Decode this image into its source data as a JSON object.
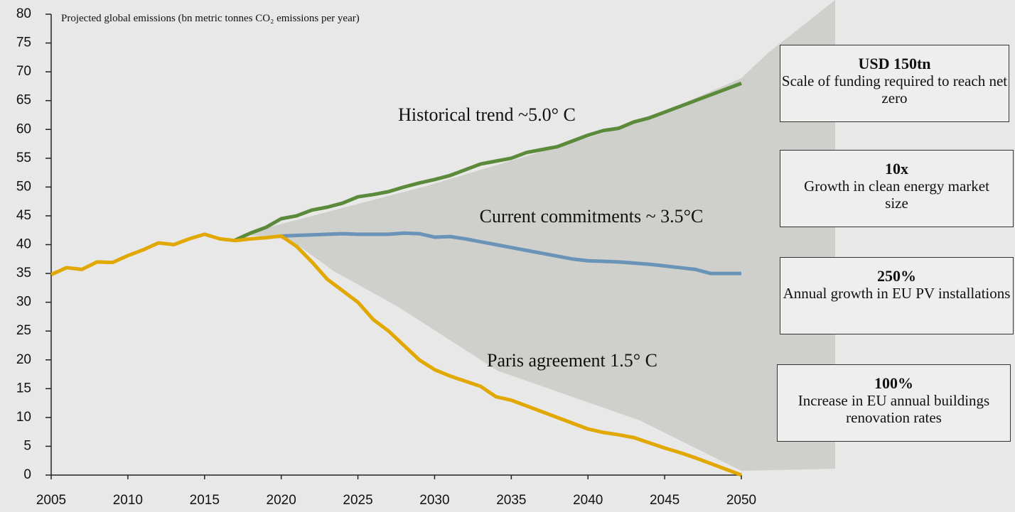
{
  "chart_data": {
    "type": "line",
    "y_label": "Projected global emissions (bn metric tonnes CO₂ emissions per year)",
    "x": [
      2005,
      2006,
      2007,
      2008,
      2009,
      2010,
      2011,
      2012,
      2013,
      2014,
      2015,
      2016,
      2017,
      2018,
      2019,
      2020,
      2021,
      2022,
      2023,
      2024,
      2025,
      2026,
      2027,
      2028,
      2029,
      2030,
      2031,
      2032,
      2033,
      2034,
      2035,
      2036,
      2037,
      2038,
      2039,
      2040,
      2041,
      2042,
      2043,
      2044,
      2045,
      2046,
      2047,
      2048,
      2049,
      2050
    ],
    "series": [
      {
        "color": "#5a8a3a",
        "values": [
          null,
          null,
          null,
          null,
          null,
          null,
          null,
          null,
          null,
          null,
          null,
          null,
          40.8,
          42,
          43,
          44.5,
          45,
          46,
          46.5,
          47.2,
          48.3,
          48.7,
          49.2,
          50,
          50.7,
          51.3,
          52,
          53,
          54,
          54.5,
          55,
          56,
          56.5,
          57,
          58,
          59,
          59.8,
          60.2,
          61.3,
          62,
          63,
          64,
          65,
          66,
          67,
          68
        ]
      },
      {
        "color": "#6a93b8",
        "values": [
          null,
          null,
          null,
          null,
          null,
          null,
          null,
          null,
          null,
          null,
          null,
          null,
          null,
          null,
          null,
          41.5,
          41.6,
          41.7,
          41.8,
          41.9,
          41.8,
          41.8,
          41.8,
          42,
          41.9,
          41.3,
          41.4,
          41,
          40.5,
          40,
          39.5,
          39,
          38.5,
          38,
          37.5,
          37.2,
          37.1,
          37,
          36.8,
          36.6,
          36.3,
          36,
          35.7,
          35,
          35,
          35
        ]
      },
      {
        "color": "#e0a800",
        "values": [
          34.8,
          36,
          35.7,
          37,
          36.9,
          38.1,
          39.1,
          40.3,
          40,
          41,
          41.8,
          41,
          40.7,
          41,
          41.2,
          41.5,
          39.7,
          37,
          34,
          32,
          30,
          27,
          25,
          22.5,
          20,
          18.3,
          17.2,
          16.3,
          15.4,
          13.6,
          13,
          12,
          11,
          10,
          9,
          8,
          7.4,
          7,
          6.5,
          5.6,
          4.7,
          3.9,
          3,
          2,
          1,
          0
        ]
      }
    ],
    "xlim": [
      2005,
      2050
    ],
    "xticks": [
      2005,
      2010,
      2015,
      2020,
      2025,
      2030,
      2035,
      2040,
      2045,
      2050
    ],
    "ylim": [
      0,
      80
    ],
    "yticks": [
      0,
      5,
      10,
      15,
      20,
      25,
      30,
      35,
      40,
      45,
      50,
      55,
      60,
      65,
      70,
      75,
      80
    ],
    "annotations": [
      "Historical trend ~5.0° C",
      "Current commitments ~ 3.5°C",
      "Paris agreement 1.5° C"
    ],
    "callouts": [
      {
        "title": "USD 150tn",
        "text": "Scale of funding required to reach net zero"
      },
      {
        "title": "10x",
        "text": "Growth in clean energy market size"
      },
      {
        "title": "250%",
        "text": "Annual growth in EU PV installations"
      },
      {
        "title": "100%",
        "text": "Increase in EU annual buildings renovation rates"
      }
    ]
  }
}
